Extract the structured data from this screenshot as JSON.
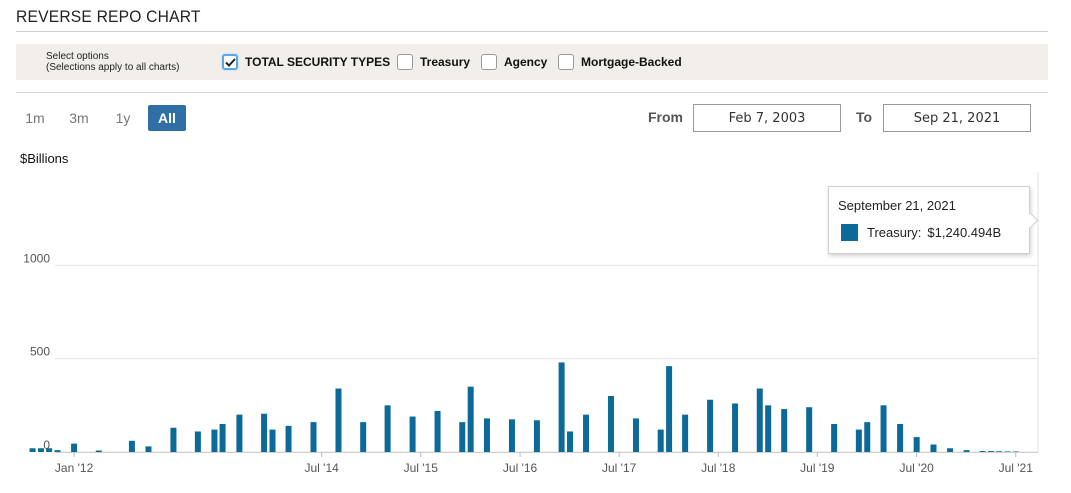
{
  "page": {
    "title": "REVERSE REPO CHART"
  },
  "options": {
    "note_line1": "Select options",
    "note_line2": "(Selections apply to all charts)",
    "items": [
      {
        "label": "TOTAL SECURITY TYPES",
        "checked": true
      },
      {
        "label": "Treasury",
        "checked": false
      },
      {
        "label": "Agency",
        "checked": false
      },
      {
        "label": "Mortgage-Backed",
        "checked": false
      }
    ]
  },
  "range_buttons": [
    {
      "label": "1m",
      "active": false
    },
    {
      "label": "3m",
      "active": false
    },
    {
      "label": "1y",
      "active": false
    },
    {
      "label": "All",
      "active": true
    }
  ],
  "date_range": {
    "from_label": "From",
    "from_value": "Feb 7, 2003",
    "to_label": "To",
    "to_value": "Sep 21, 2021"
  },
  "chart_data": {
    "type": "bar",
    "ylabel": "$Billions",
    "ylim": [
      0,
      1500
    ],
    "yticks": [
      0,
      500,
      1000
    ],
    "xlim": [
      "2011-06-01",
      "2021-09-21"
    ],
    "xticks": [
      {
        "label": "Jan '12",
        "date": "2012-01-01"
      },
      {
        "label": "Jul '14",
        "date": "2014-07-01"
      },
      {
        "label": "Jul '15",
        "date": "2015-07-01"
      },
      {
        "label": "Jul '16",
        "date": "2016-07-01"
      },
      {
        "label": "Jul '17",
        "date": "2017-07-01"
      },
      {
        "label": "Jul '18",
        "date": "2018-07-01"
      },
      {
        "label": "Jul '19",
        "date": "2019-07-01"
      },
      {
        "label": "Jul '20",
        "date": "2020-07-01"
      },
      {
        "label": "Jul '21",
        "date": "2021-07-01"
      }
    ],
    "grid": true,
    "series": [
      {
        "name": "Treasury",
        "color": "#0b6a98",
        "points": [
          [
            "2011-08-01",
            20
          ],
          [
            "2011-09-01",
            20
          ],
          [
            "2011-10-01",
            20
          ],
          [
            "2011-11-01",
            10
          ],
          [
            "2012-01-01",
            45
          ],
          [
            "2012-04-01",
            8
          ],
          [
            "2012-08-01",
            60
          ],
          [
            "2012-10-01",
            30
          ],
          [
            "2013-01-01",
            130
          ],
          [
            "2013-04-01",
            110
          ],
          [
            "2013-06-01",
            120
          ],
          [
            "2013-07-01",
            150
          ],
          [
            "2013-09-01",
            200
          ],
          [
            "2013-12-01",
            205
          ],
          [
            "2014-01-01",
            120
          ],
          [
            "2014-03-01",
            140
          ],
          [
            "2014-06-01",
            160
          ],
          [
            "2014-09-01",
            340
          ],
          [
            "2014-12-01",
            160
          ],
          [
            "2015-03-01",
            250
          ],
          [
            "2015-06-01",
            190
          ],
          [
            "2015-09-01",
            220
          ],
          [
            "2015-12-01",
            160
          ],
          [
            "2016-01-01",
            350
          ],
          [
            "2016-03-01",
            180
          ],
          [
            "2016-06-01",
            175
          ],
          [
            "2016-09-01",
            170
          ],
          [
            "2016-12-01",
            480
          ],
          [
            "2017-01-01",
            110
          ],
          [
            "2017-03-01",
            200
          ],
          [
            "2017-06-01",
            300
          ],
          [
            "2017-09-01",
            180
          ],
          [
            "2017-12-01",
            120
          ],
          [
            "2018-01-01",
            460
          ],
          [
            "2018-03-01",
            200
          ],
          [
            "2018-06-01",
            280
          ],
          [
            "2018-09-01",
            260
          ],
          [
            "2018-12-01",
            340
          ],
          [
            "2019-01-01",
            250
          ],
          [
            "2019-03-01",
            230
          ],
          [
            "2019-06-01",
            240
          ],
          [
            "2019-09-01",
            150
          ],
          [
            "2019-12-01",
            120
          ],
          [
            "2020-01-01",
            160
          ],
          [
            "2020-03-01",
            250
          ],
          [
            "2020-05-01",
            150
          ],
          [
            "2020-07-01",
            80
          ],
          [
            "2020-09-01",
            40
          ],
          [
            "2020-11-01",
            20
          ],
          [
            "2021-01-01",
            10
          ],
          [
            "2021-03-01",
            5
          ],
          [
            "2021-04-01",
            5
          ],
          [
            "2021-05-01",
            4
          ],
          [
            "2021-06-01",
            3
          ],
          [
            "2021-07-01",
            2
          ]
        ]
      }
    ],
    "annotations": [
      {
        "date_label": "September 21, 2021",
        "series_label": "Treasury:",
        "value_label": "$1,240.494B"
      }
    ]
  }
}
